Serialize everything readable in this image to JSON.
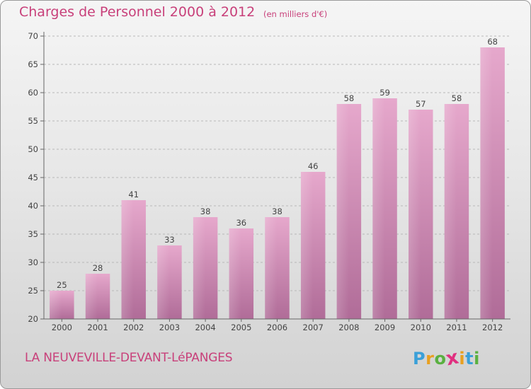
{
  "title": "Charges de Personnel 2000 à 2012",
  "subtitle": "(en milliers d'€)",
  "place": "LA NEUVEVILLE-DEVANT-LéPANGES",
  "logo": {
    "letters": [
      "P",
      "r",
      "o",
      "x",
      "i",
      "t",
      "i"
    ],
    "colors": [
      "#3aa0d8",
      "#e8a020",
      "#5ab040",
      "#e03080",
      "#e8a020",
      "#3aa0d8",
      "#5ab040"
    ]
  },
  "colors": {
    "text": "#c8407a",
    "bar_top": "#e6a8cc",
    "bar_bottom": "#b06c98",
    "axis": "#666666",
    "grid": "#b8b8b8"
  },
  "chart_data": {
    "type": "bar",
    "categories": [
      "2000",
      "2001",
      "2002",
      "2003",
      "2004",
      "2005",
      "2006",
      "2007",
      "2008",
      "2009",
      "2010",
      "2011",
      "2012"
    ],
    "values": [
      25,
      28,
      41,
      33,
      38,
      36,
      38,
      46,
      58,
      59,
      57,
      58,
      68
    ],
    "ylim": [
      20,
      70
    ],
    "yticks": [
      20,
      25,
      30,
      35,
      40,
      45,
      50,
      55,
      60,
      65,
      70
    ],
    "grid": "horizontal dashed",
    "xlabel": "",
    "ylabel": ""
  }
}
